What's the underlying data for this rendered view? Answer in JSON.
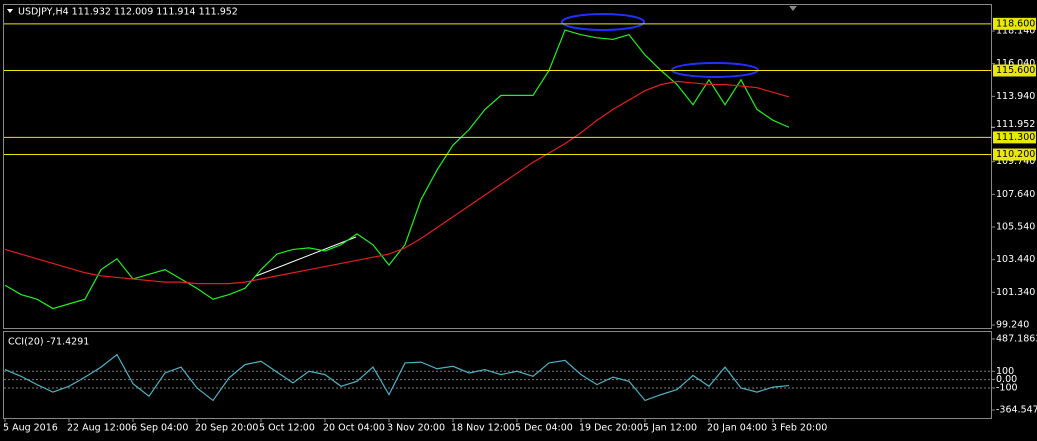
{
  "chart_data": [
    {
      "type": "line",
      "title": "USDJPY,H4 111.932 112.009 111.914 111.952",
      "categories": [
        "5 Aug 2016",
        null,
        null,
        null,
        "22 Aug 12:00",
        null,
        null,
        null,
        "6 Sep 04:00",
        null,
        null,
        null,
        "20 Sep 20:00",
        null,
        null,
        null,
        "5 Oct 12:00",
        null,
        null,
        null,
        "20 Oct 04:00",
        null,
        null,
        null,
        "3 Nov 20:00",
        null,
        null,
        null,
        "18 Nov 12:00",
        null,
        null,
        null,
        "5 Dec 04:00",
        null,
        null,
        null,
        "19 Dec 20:00",
        null,
        null,
        null,
        "5 Jan 12:00",
        null,
        null,
        null,
        "20 Jan 04:00",
        null,
        null,
        null,
        "3 Feb 20:00",
        null
      ],
      "series": [
        {
          "color": "#22ee22",
          "values": [
            101.8,
            101.2,
            100.9,
            100.3,
            100.6,
            100.9,
            102.8,
            103.5,
            102.2,
            102.5,
            102.8,
            102.2,
            101.6,
            100.9,
            101.2,
            101.6,
            102.8,
            103.8,
            104.1,
            104.2,
            104.0,
            104.4,
            105.1,
            104.4,
            103.1,
            104.4,
            107.3,
            109.2,
            110.8,
            111.8,
            113.1,
            114.0,
            114.0,
            114.0,
            115.6,
            118.2,
            117.9,
            117.7,
            117.6,
            117.9,
            116.6,
            115.6,
            114.7,
            113.4,
            115.0,
            113.4,
            115.0,
            113.1,
            112.4,
            111.952
          ]
        },
        {
          "color": "#e02020",
          "values": [
            104.1,
            103.8,
            103.5,
            103.2,
            102.9,
            102.6,
            102.4,
            102.3,
            102.2,
            102.1,
            102.0,
            102.0,
            101.9,
            101.9,
            101.9,
            102.0,
            102.2,
            102.4,
            102.6,
            102.8,
            103.0,
            103.2,
            103.4,
            103.6,
            103.8,
            104.2,
            104.8,
            105.5,
            106.2,
            106.9,
            107.6,
            108.3,
            109.0,
            109.7,
            110.3,
            110.9,
            111.6,
            112.4,
            113.1,
            113.7,
            114.3,
            114.7,
            114.9,
            114.8,
            114.7,
            114.7,
            114.6,
            114.5,
            114.2,
            113.9
          ]
        }
      ],
      "ylim": [
        99.05,
        119.81
      ],
      "yticks": [
        {
          "value": 118.14,
          "label": "118.140"
        },
        {
          "value": 116.04,
          "label": "116.040"
        },
        {
          "value": 113.94,
          "label": "113.940"
        },
        {
          "value": 109.74,
          "label": "109.740"
        },
        {
          "value": 107.64,
          "label": "107.640"
        },
        {
          "value": 105.54,
          "label": "105.540"
        },
        {
          "value": 103.44,
          "label": "103.440"
        },
        {
          "value": 101.34,
          "label": "101.340"
        },
        {
          "value": 99.24,
          "label": "99.240"
        }
      ],
      "levels": [
        {
          "value": 118.6,
          "label": "118.600"
        },
        {
          "value": 115.6,
          "label": "115.600"
        },
        {
          "value": 111.3,
          "label": "111.300"
        },
        {
          "value": 110.2,
          "label": "110.200"
        }
      ],
      "level_color": "#e8e800",
      "last": {
        "value": 111.952,
        "label": "111.952"
      }
    },
    {
      "type": "line",
      "title": "CCI(20) -71.4291",
      "series": [
        {
          "color": "#4fb0c0",
          "values": [
            120,
            40,
            -60,
            -150,
            -80,
            30,
            150,
            300,
            -50,
            -200,
            80,
            150,
            -100,
            -250,
            20,
            180,
            220,
            90,
            -40,
            100,
            60,
            -80,
            -20,
            150,
            -180,
            200,
            210,
            130,
            160,
            80,
            120,
            60,
            100,
            40,
            200,
            230,
            60,
            -60,
            30,
            -20,
            -250,
            -180,
            -120,
            50,
            -80,
            150,
            -100,
            -150,
            -90,
            -71.4291
          ]
        }
      ],
      "ylim": [
        -364.5479,
        487.1863
      ],
      "yticks": [
        {
          "value": 487.1863,
          "label": "487.1863"
        },
        100,
        {
          "value": 0,
          "label": "0.00"
        },
        -100,
        {
          "value": -364.5479,
          "label": "-364.5479"
        }
      ],
      "grid_dashed": true
    }
  ]
}
